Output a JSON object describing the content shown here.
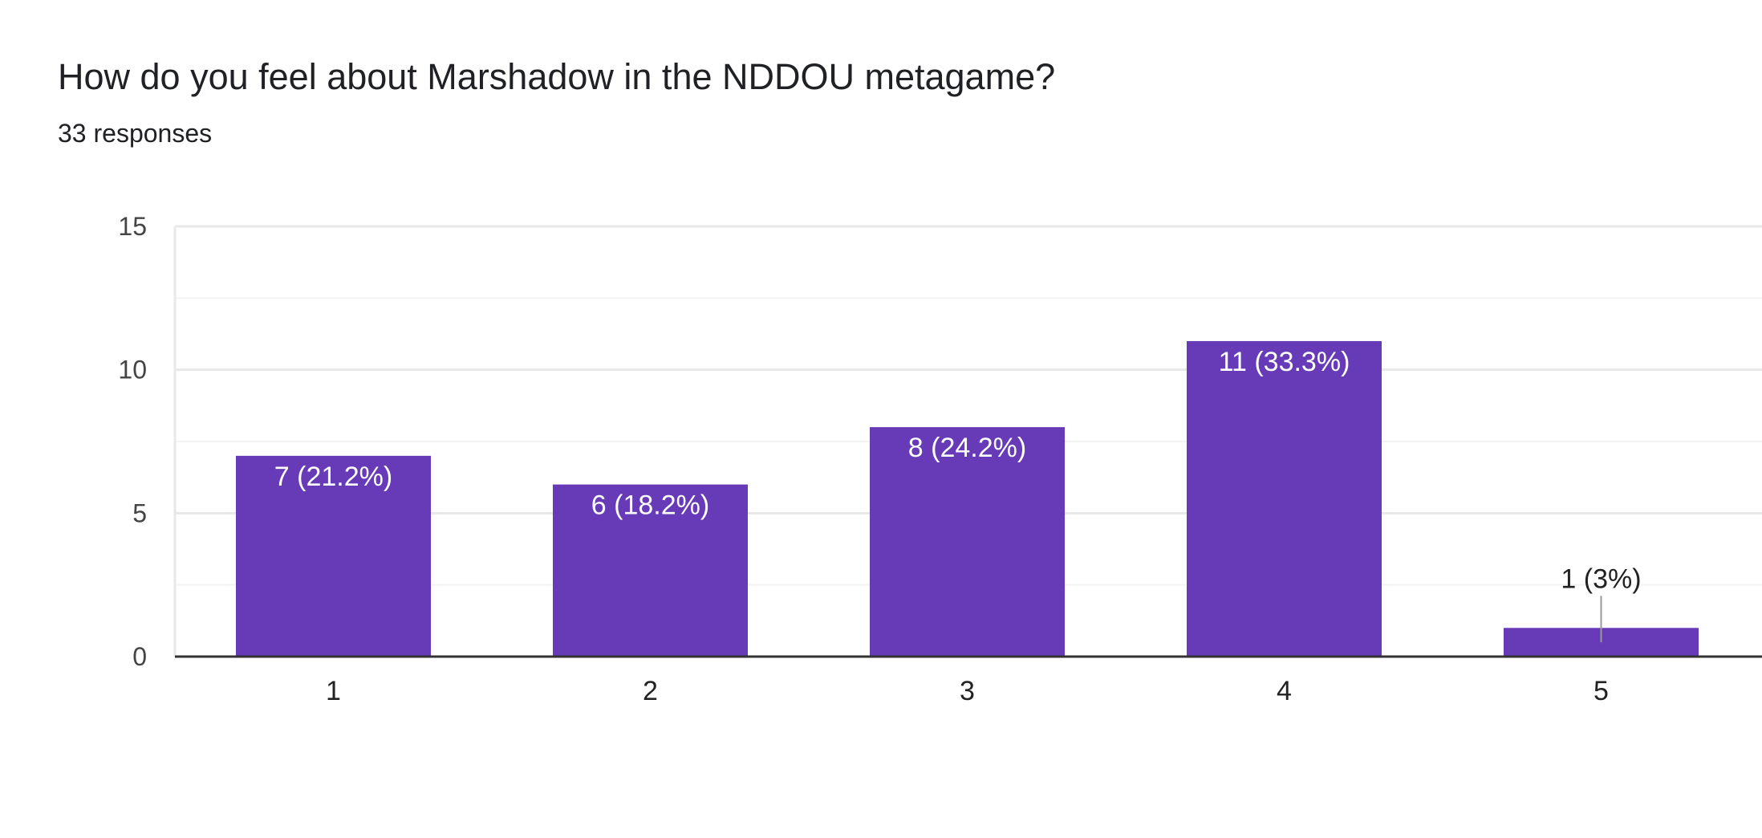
{
  "question": {
    "title": "How do you feel about Marshadow in the NDDOU metagame?",
    "responses": "33 responses"
  },
  "colors": {
    "bar": "#673ab7",
    "grid_major": "#e8e8e8",
    "grid_minor": "#f3f3f3",
    "axis": "#333333",
    "leader": "#999999"
  },
  "chart_data": {
    "type": "bar",
    "title": "How do you feel about Marshadow in the NDDOU metagame?",
    "categories": [
      "1",
      "2",
      "3",
      "4",
      "5"
    ],
    "values": [
      7,
      6,
      8,
      11,
      1
    ],
    "data_labels": [
      "7 (21.2%)",
      "6 (18.2%)",
      "8 (24.2%)",
      "11 (33.3%)",
      "1 (3%)"
    ],
    "ylim": [
      0,
      15
    ],
    "yticks": [
      0,
      5,
      10,
      15
    ],
    "ytick_labels": [
      "0",
      "5",
      "10",
      "15"
    ],
    "grid": true,
    "legend": "none"
  }
}
